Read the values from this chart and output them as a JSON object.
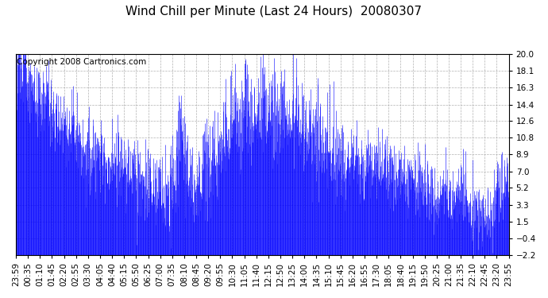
{
  "title": "Wind Chill per Minute (Last 24 Hours)  20080307",
  "copyright_text": "Copyright 2008 Cartronics.com",
  "line_color": "#0000FF",
  "background_color": "#FFFFFF",
  "plot_bg_color": "#FFFFFF",
  "yticks": [
    20.0,
    18.1,
    16.3,
    14.4,
    12.6,
    10.8,
    8.9,
    7.0,
    5.2,
    3.3,
    1.5,
    -0.4,
    -2.2
  ],
  "ylim": [
    -2.2,
    20.0
  ],
  "xtick_labels": [
    "23:59",
    "00:35",
    "01:10",
    "01:45",
    "02:20",
    "02:55",
    "03:30",
    "04:05",
    "04:40",
    "05:15",
    "05:50",
    "06:25",
    "07:00",
    "07:35",
    "08:10",
    "08:45",
    "09:20",
    "09:55",
    "10:30",
    "11:05",
    "11:40",
    "12:15",
    "12:50",
    "13:25",
    "14:00",
    "14:35",
    "15:10",
    "15:45",
    "16:20",
    "16:55",
    "17:30",
    "18:05",
    "18:40",
    "19:15",
    "19:50",
    "20:25",
    "21:00",
    "21:35",
    "22:10",
    "22:45",
    "23:20",
    "23:55"
  ],
  "grid_color": "#AAAAAA",
  "grid_style": "--",
  "title_fontsize": 11,
  "tick_fontsize": 7.5,
  "copyright_fontsize": 7.5
}
